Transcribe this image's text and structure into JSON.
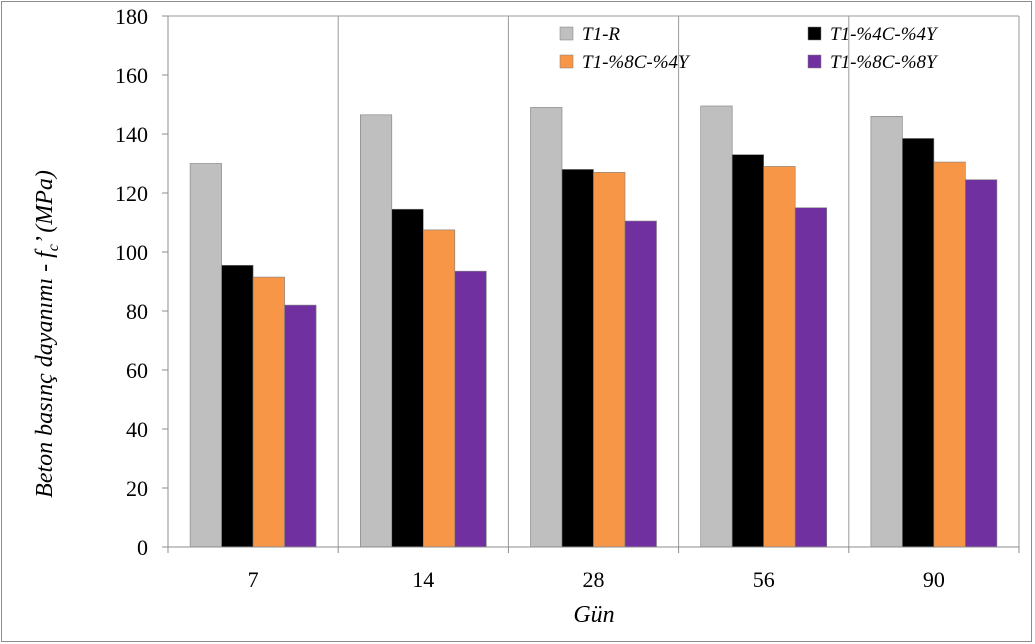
{
  "chart_data": {
    "type": "bar",
    "title": "",
    "categories": [
      "7",
      "14",
      "28",
      "56",
      "90"
    ],
    "series": [
      {
        "name": "T1-R",
        "values": [
          130,
          146.5,
          149,
          149.5,
          146
        ],
        "color": "#bfbfbf"
      },
      {
        "name": "T1-%4C-%4Y",
        "values": [
          95.5,
          114.5,
          128,
          133,
          138.5
        ],
        "color": "#000000"
      },
      {
        "name": "T1-%8C-%4Y",
        "values": [
          91.5,
          107.5,
          127,
          129,
          130.5
        ],
        "color": "#f79646"
      },
      {
        "name": "T1-%8C-%8Y",
        "values": [
          82,
          93.5,
          110.5,
          115,
          124.5
        ],
        "color": "#7030a0"
      }
    ],
    "xlabel": "Gün",
    "ylabel_parts": {
      "pre": "Beton basınç dayanımı - ",
      "f": "f",
      "sub": "c",
      "post": "’ (MPa)"
    },
    "ylim": [
      0,
      180
    ],
    "yticks": [
      "0",
      "20",
      "40",
      "60",
      "80",
      "100",
      "120",
      "140",
      "160",
      "180"
    ],
    "grid": "vertical",
    "legend_position": "top-right"
  }
}
